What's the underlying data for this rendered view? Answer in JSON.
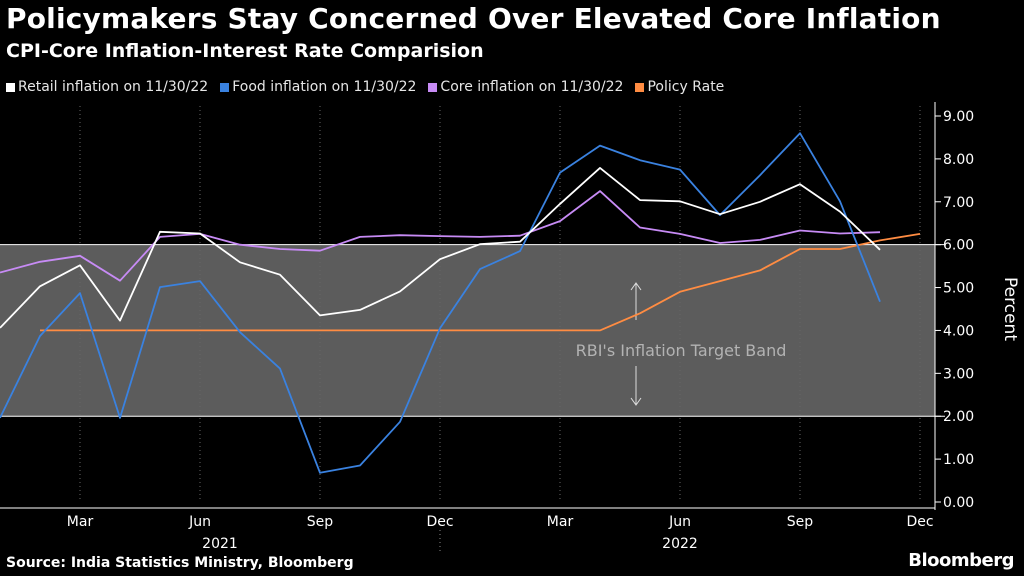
{
  "chart_data": {
    "type": "line",
    "title": "Policymakers Stay Concerned Over Elevated Core Inflation",
    "subtitle": "CPI-Core Inflation-Interest Rate Comparision",
    "ylabel": "Percent",
    "ylim": [
      0,
      9
    ],
    "yticks": [
      "0.00",
      "1.00",
      "2.00",
      "3.00",
      "4.00",
      "5.00",
      "6.00",
      "7.00",
      "8.00",
      "9.00"
    ],
    "x": [
      "2021-01",
      "2021-02",
      "2021-03",
      "2021-04",
      "2021-05",
      "2021-06",
      "2021-07",
      "2021-08",
      "2021-09",
      "2021-10",
      "2021-11",
      "2021-12",
      "2022-01",
      "2022-02",
      "2022-03",
      "2022-04",
      "2022-05",
      "2022-06",
      "2022-07",
      "2022-08",
      "2022-09",
      "2022-10",
      "2022-11",
      "2022-12"
    ],
    "xticks": [
      "Mar",
      "Jun",
      "Sep",
      "Dec",
      "Mar",
      "Jun",
      "Sep",
      "Dec"
    ],
    "year_labels": [
      "2021",
      "2022"
    ],
    "target_band": {
      "low": 2,
      "high": 6,
      "label": "RBI's Inflation Target Band"
    },
    "series": [
      {
        "name": "Retail inflation on 11/30/22",
        "color": "#ffffff",
        "values": [
          4.06,
          5.03,
          5.52,
          4.23,
          6.3,
          6.26,
          5.59,
          5.3,
          4.35,
          4.48,
          4.91,
          5.66,
          6.01,
          6.07,
          6.95,
          7.79,
          7.04,
          7.01,
          6.71,
          7.0,
          7.41,
          6.77,
          5.88,
          null
        ]
      },
      {
        "name": "Food inflation on 11/30/22",
        "color": "#3a82e0",
        "values": [
          1.96,
          3.87,
          4.87,
          1.96,
          5.01,
          5.15,
          3.96,
          3.11,
          0.68,
          0.85,
          1.87,
          4.05,
          5.43,
          5.85,
          7.68,
          8.31,
          7.97,
          7.75,
          6.69,
          7.62,
          8.6,
          7.01,
          4.67,
          null
        ]
      },
      {
        "name": "Core inflation on 11/30/22",
        "color": "#c78bf5",
        "values": [
          5.35,
          5.6,
          5.74,
          5.16,
          6.18,
          6.25,
          6.0,
          5.9,
          5.86,
          6.18,
          6.22,
          6.2,
          6.18,
          6.21,
          6.55,
          7.25,
          6.4,
          6.25,
          6.04,
          6.11,
          6.33,
          6.26,
          6.29,
          null
        ]
      },
      {
        "name": "Policy Rate",
        "color": "#ff8c42",
        "values": [
          null,
          4.0,
          4.0,
          4.0,
          4.0,
          4.0,
          4.0,
          4.0,
          4.0,
          4.0,
          4.0,
          4.0,
          4.0,
          4.0,
          4.0,
          4.0,
          4.4,
          4.9,
          5.15,
          5.4,
          5.9,
          5.9,
          6.1,
          6.25
        ]
      }
    ]
  },
  "source": "Source: India Statistics Ministry, Bloomberg",
  "brand": "Bloomberg"
}
